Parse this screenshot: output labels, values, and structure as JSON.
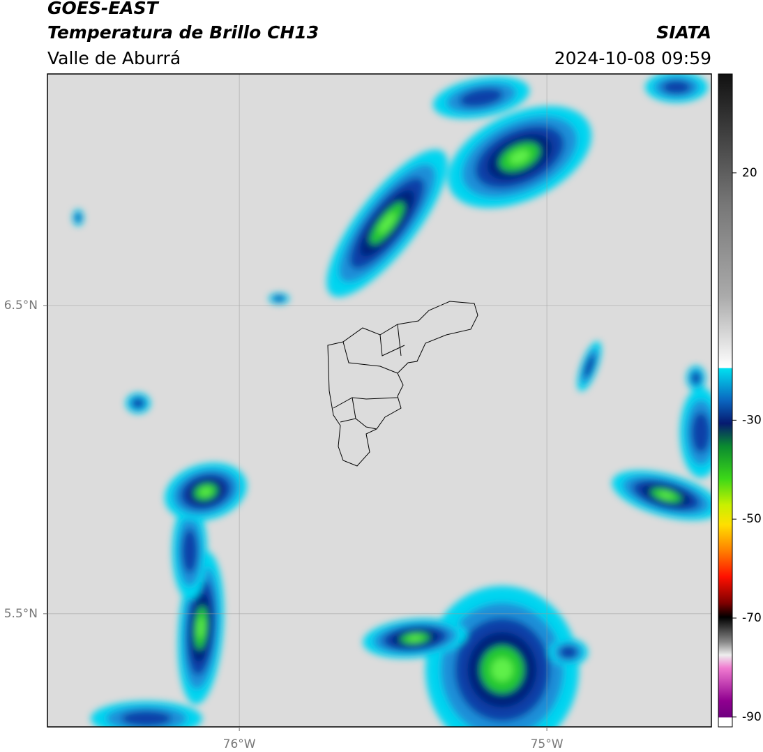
{
  "header": {
    "title": "GOES-EAST",
    "subtitle": "Temperatura de Brillo CH13",
    "region": "Valle de Aburrá",
    "source": "SIATA",
    "timestamp": "2024-10-08 09:59"
  },
  "map": {
    "type": "map",
    "xlim": [
      -76.624,
      -74.465
    ],
    "ylim": [
      5.133,
      7.251
    ],
    "xticks": [
      {
        "value": -76,
        "label": "76°W"
      },
      {
        "value": -75,
        "label": "75°W"
      }
    ],
    "yticks": [
      {
        "value": 5.5,
        "label": "5.5°N"
      },
      {
        "value": 6.5,
        "label": "6.5°N"
      }
    ],
    "grid": true
  },
  "colorbar": {
    "lim": [
      -92,
      40
    ],
    "ticks": [
      20,
      -30,
      -50,
      -70,
      -90
    ]
  }
}
